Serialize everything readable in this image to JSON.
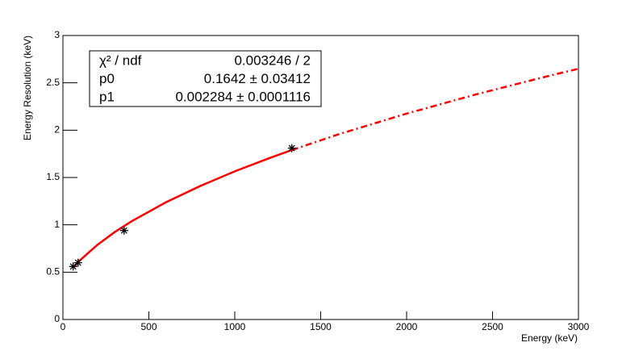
{
  "chart_data": {
    "type": "scatter",
    "xlabel": "Energy (keV)",
    "ylabel": "Energy Resolution (keV)",
    "xlim": [
      0,
      3000
    ],
    "ylim": [
      0,
      3
    ],
    "xticks": [
      0,
      500,
      1000,
      1500,
      2000,
      2500,
      3000
    ],
    "yticks": [
      0,
      0.5,
      1,
      1.5,
      2,
      2.5,
      3
    ],
    "series": [
      {
        "type": "scatter",
        "color": "#000000",
        "x": [
          59.5,
          88,
          356,
          1332
        ],
        "values": [
          0.56,
          0.6,
          0.94,
          1.81
        ]
      },
      {
        "type": "line",
        "color": "#ff0000",
        "dashed": false,
        "x": [
          59.5,
          100,
          200,
          300,
          400,
          600,
          800,
          1000,
          1200,
          1332
        ],
        "values": [
          0.548,
          0.627,
          0.788,
          0.922,
          1.038,
          1.239,
          1.411,
          1.565,
          1.704,
          1.79
        ]
      },
      {
        "type": "line",
        "color": "#ff0000",
        "dashed": true,
        "x": [
          1332,
          1600,
          2000,
          2400,
          2800,
          3000
        ],
        "values": [
          1.79,
          1.954,
          2.175,
          2.376,
          2.561,
          2.649
        ]
      }
    ],
    "stats": [
      {
        "label": "χ² / ndf",
        "value": "0.003246 / 2"
      },
      {
        "label": "p0",
        "value": "0.1642 ± 0.03412"
      },
      {
        "label": "p1",
        "value": "0.002284 ± 0.0001116"
      }
    ]
  }
}
